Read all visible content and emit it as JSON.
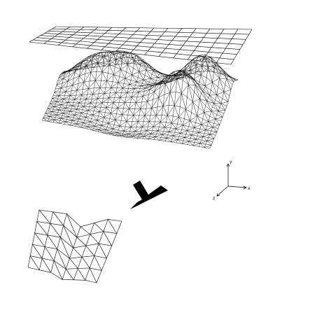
{
  "figure": {
    "description_free": true,
    "colors": {
      "wire": "#000000",
      "background": "#ffffff"
    },
    "axes": {
      "y": "y",
      "x": "x",
      "z": "z"
    }
  }
}
